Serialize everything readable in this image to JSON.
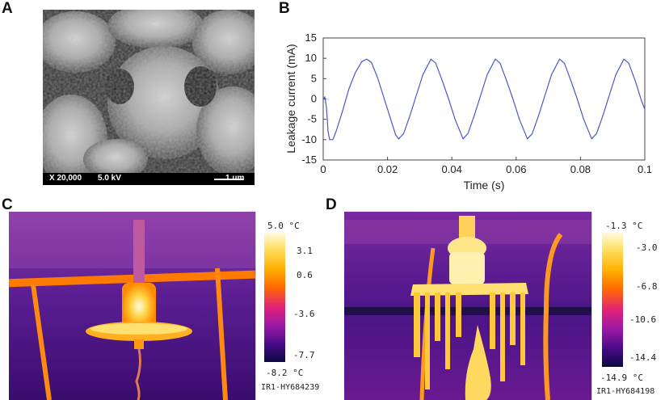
{
  "panels": {
    "a": {
      "letter": "A",
      "sem": {
        "magnification": "X 20,000",
        "voltage": "5.0 kV",
        "scale": "1 um"
      }
    },
    "b": {
      "letter": "B"
    },
    "c": {
      "letter": "C",
      "colorbar": {
        "max": "5.0 °C",
        "ticks": [
          "3.1",
          "0.6",
          "-3.6",
          "-7.7"
        ],
        "min": "-8.2 °C",
        "camera_id": "IR1-HY684239"
      }
    },
    "d": {
      "letter": "D",
      "colorbar": {
        "max": "-1.3 °C",
        "ticks": [
          "-3.0",
          "-6.8",
          "-10.6",
          "-14.4"
        ],
        "min": "-14.9 °C",
        "camera_id": "IR1-HY684198"
      }
    }
  },
  "chart_data": {
    "type": "line",
    "xlabel": "Time (s)",
    "ylabel": "Leakage current (mA)",
    "xlim": [
      0,
      0.1
    ],
    "ylim": [
      -15,
      15
    ],
    "xticks": [
      "0",
      "0.02",
      "0.04",
      "0.06",
      "0.08",
      "0.1"
    ],
    "yticks": [
      "15",
      "10",
      "5",
      "0",
      "-5",
      "-10",
      "-15"
    ],
    "grid": false,
    "series": [
      {
        "color": "#4b56c8",
        "x": [
          0,
          0.0005,
          0.001,
          0.0015,
          0.002,
          0.003,
          0.004,
          0.006,
          0.008,
          0.01,
          0.012,
          0.0135,
          0.015,
          0.017,
          0.019,
          0.021,
          0.0225,
          0.0235,
          0.025,
          0.027,
          0.029,
          0.031,
          0.0335,
          0.035,
          0.037,
          0.039,
          0.041,
          0.0435,
          0.045,
          0.047,
          0.049,
          0.051,
          0.0535,
          0.055,
          0.057,
          0.059,
          0.061,
          0.0635,
          0.065,
          0.067,
          0.069,
          0.071,
          0.0735,
          0.075,
          0.077,
          0.079,
          0.081,
          0.0835,
          0.085,
          0.087,
          0.089,
          0.091,
          0.0935,
          0.095,
          0.097,
          0.099,
          0.1
        ],
        "y": [
          0,
          0.5,
          -2,
          -8,
          -10,
          -10,
          -8,
          -3,
          2.5,
          6.5,
          9.2,
          9.8,
          9,
          5,
          0,
          -5,
          -8.8,
          -9.8,
          -8.5,
          -4,
          1,
          6,
          9.8,
          8.8,
          4.5,
          0,
          -5,
          -9.8,
          -8.5,
          -4,
          1,
          6,
          9.8,
          8.8,
          4.5,
          0,
          -5,
          -9.8,
          -8.5,
          -4,
          1,
          6,
          9.8,
          8.8,
          4.5,
          0,
          -5,
          -9.8,
          -8.5,
          -4,
          1,
          6,
          9.8,
          8.8,
          4.5,
          -0.5,
          -2.5
        ]
      }
    ]
  }
}
